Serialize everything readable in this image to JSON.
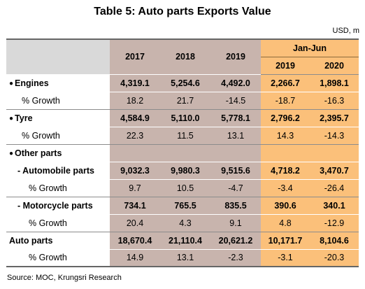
{
  "title": "Table 5: Auto parts Exports Value",
  "unit": "USD, m",
  "header": {
    "y2017": "2017",
    "y2018": "2018",
    "y2019": "2019",
    "janjun": "Jan-Jun",
    "j2019": "2019",
    "j2020": "2020"
  },
  "rows": [
    {
      "label": "Engines",
      "v": [
        "4,319.1",
        "5,254.6",
        "4,492.0",
        "2,266.7",
        "1,898.1"
      ]
    },
    {
      "label": "% Growth",
      "v": [
        "18.2",
        "21.7",
        "-14.5",
        "-18.7",
        "-16.3"
      ]
    },
    {
      "label": "Tyre",
      "v": [
        "4,584.9",
        "5,110.0",
        "5,778.1",
        "2,796.2",
        "2,395.7"
      ]
    },
    {
      "label": "% Growth",
      "v": [
        "22.3",
        "11.5",
        "13.1",
        "14.3",
        "-14.3"
      ]
    },
    {
      "label": "Other parts",
      "v": [
        "",
        "",
        "",
        "",
        ""
      ]
    },
    {
      "label": "- Automobile parts",
      "v": [
        "9,032.3",
        "9,980.3",
        "9,515.6",
        "4,718.2",
        "3,470.7"
      ]
    },
    {
      "label": "% Growth",
      "v": [
        "9.7",
        "10.5",
        "-4.7",
        "-3.4",
        "-26.4"
      ]
    },
    {
      "label": "- Motorcycle parts",
      "v": [
        "734.1",
        "765.5",
        "835.5",
        "390.6",
        "340.1"
      ]
    },
    {
      "label": "% Growth",
      "v": [
        "20.4",
        "4.3",
        "9.1",
        "4.8",
        "-12.9"
      ]
    },
    {
      "label": "Auto parts",
      "v": [
        "18,670.4",
        "21,110.4",
        "20,621.2",
        "10,171.7",
        "8,104.6"
      ]
    },
    {
      "label": "% Growth",
      "v": [
        "14.9",
        "13.1",
        "-2.3",
        "-3.1",
        "-20.3"
      ]
    }
  ],
  "source": "Source: MOC, Krungsri Research"
}
